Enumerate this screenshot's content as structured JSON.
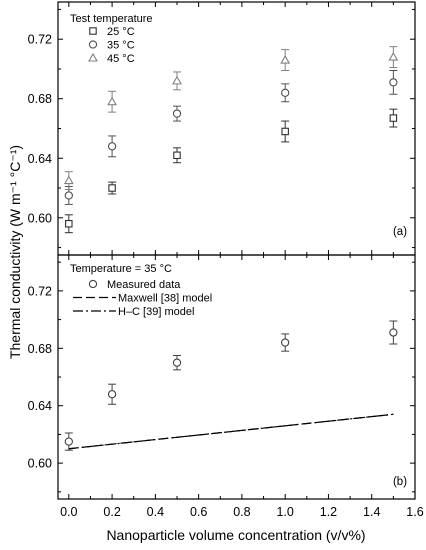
{
  "chart_data": [
    {
      "type": "scatter",
      "panel_label": "(a)",
      "ylabel": "Thermal conductivity (W m⁻¹ °C⁻¹)",
      "ylim": [
        0.575,
        0.745
      ],
      "yticks": [
        "0.60",
        "0.64",
        "0.68",
        "0.72"
      ],
      "xlim": [
        -0.05,
        1.6
      ],
      "legend_title": "Test temperature",
      "legend_position": "top-left",
      "series": [
        {
          "name": "25 °C",
          "marker": "square",
          "color": "#303030",
          "x": [
            0.0,
            0.2,
            0.5,
            1.0,
            1.5
          ],
          "y": [
            0.596,
            0.62,
            0.642,
            0.658,
            0.667
          ],
          "err": [
            0.006,
            0.004,
            0.005,
            0.007,
            0.006
          ]
        },
        {
          "name": "35 °C",
          "marker": "circle",
          "color": "#505050",
          "x": [
            0.0,
            0.2,
            0.5,
            1.0,
            1.5
          ],
          "y": [
            0.615,
            0.648,
            0.67,
            0.684,
            0.691
          ],
          "err": [
            0.006,
            0.007,
            0.005,
            0.006,
            0.008
          ]
        },
        {
          "name": "45 °C",
          "marker": "triangle",
          "color": "#808080",
          "x": [
            0.0,
            0.2,
            0.5,
            1.0,
            1.5
          ],
          "y": [
            0.625,
            0.678,
            0.692,
            0.706,
            0.708
          ],
          "err": [
            0.006,
            0.007,
            0.006,
            0.007,
            0.007
          ]
        }
      ]
    },
    {
      "type": "scatter",
      "panel_label": "(b)",
      "xlabel": "Nanoparticle volume concentration (v/v%)",
      "ylim": [
        0.575,
        0.745
      ],
      "yticks": [
        "0.60",
        "0.64",
        "0.68",
        "0.72"
      ],
      "xlim": [
        -0.05,
        1.6
      ],
      "xticks": [
        "0.0",
        "0.2",
        "0.4",
        "0.6",
        "0.8",
        "1.0",
        "1.2",
        "1.4",
        "1.6"
      ],
      "legend_title": "Temperature = 35 °C",
      "legend_position": "top-left",
      "series": [
        {
          "name": "Measured data",
          "marker": "circle",
          "color": "#404040",
          "x": [
            0.0,
            0.2,
            0.5,
            1.0,
            1.5
          ],
          "y": [
            0.615,
            0.648,
            0.67,
            0.684,
            0.691
          ],
          "err": [
            0.006,
            0.007,
            0.005,
            0.006,
            0.008
          ]
        },
        {
          "name": "Maxwell [38] model",
          "line_style": "dashed",
          "color": "#000000",
          "x": [
            0.0,
            1.5
          ],
          "y": [
            0.61,
            0.634
          ]
        },
        {
          "name": "H–C [39] model",
          "line_style": "dash-dot",
          "color": "#000000",
          "x": [
            0.0,
            1.5
          ],
          "y": [
            0.61,
            0.634
          ]
        }
      ]
    }
  ]
}
